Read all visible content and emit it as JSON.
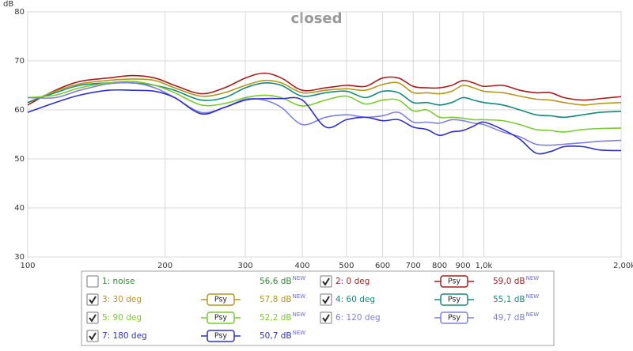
{
  "chart_data": {
    "type": "line",
    "title": "closed",
    "ylabel": "dB",
    "log_x": true,
    "grid": true,
    "xlim": [
      100,
      2000
    ],
    "ylim": [
      30,
      80
    ],
    "yticks": [
      30,
      40,
      50,
      60,
      70,
      80
    ],
    "xticks": [
      100,
      200,
      300,
      400,
      500,
      600,
      700,
      800,
      900,
      {
        "value": 1000,
        "label": "1,0k"
      },
      {
        "value": 2000,
        "label": "2,00k Hz"
      }
    ],
    "x": [
      100,
      115,
      130,
      150,
      170,
      190,
      210,
      240,
      270,
      300,
      330,
      360,
      400,
      450,
      500,
      550,
      600,
      650,
      700,
      750,
      800,
      850,
      900,
      950,
      1000,
      1100,
      1200,
      1300,
      1400,
      1500,
      1650,
      1800,
      2000
    ],
    "series": [
      {
        "name": "1: noise",
        "color": "#2e8b2e",
        "checked": false,
        "level": "56,6 dB",
        "level_note": "NEW"
      },
      {
        "name": "2: 0 deg",
        "color": "#a81e1e",
        "checked": true,
        "psy": "Psy",
        "level": "59,0 dB",
        "level_note": "NEW",
        "values": [
          61,
          64,
          65.8,
          66.5,
          67,
          66.5,
          65,
          63.3,
          64.5,
          66.5,
          67.5,
          66.5,
          64,
          64.5,
          65,
          64.8,
          66.5,
          66.5,
          64.8,
          64.5,
          64.5,
          65,
          66,
          65.5,
          64.8,
          65,
          64,
          63.5,
          63.5,
          62.5,
          62,
          62.3,
          62.7
        ]
      },
      {
        "name": "3: 30 deg",
        "color": "#b8961e",
        "checked": true,
        "psy": "Psy",
        "level": "57,8 dB",
        "level_note": "NEW",
        "values": [
          61.5,
          63.8,
          65.3,
          66,
          66.3,
          66,
          64.5,
          62.8,
          63.5,
          65,
          66,
          65.5,
          63.5,
          64,
          64.3,
          64,
          65.2,
          65.5,
          63.5,
          63.5,
          63.3,
          63.8,
          65,
          64.5,
          63.8,
          63.5,
          62.8,
          62.2,
          62,
          61.5,
          61,
          61.3,
          61.5
        ]
      },
      {
        "name": "4: 60 deg",
        "color": "#178a7a",
        "checked": true,
        "psy": "Psy",
        "level": "55,1 dB",
        "level_note": "NEW",
        "values": [
          61.5,
          63.5,
          65,
          65.5,
          65.5,
          65,
          64,
          62,
          62.5,
          64.5,
          65.5,
          65,
          62.8,
          63.5,
          63.8,
          62.5,
          63.8,
          63.5,
          61.5,
          61.5,
          61,
          61.5,
          62.5,
          62,
          61.5,
          61,
          60,
          59,
          58.8,
          58.5,
          59,
          59.5,
          59.7
        ]
      },
      {
        "name": "5: 90 deg",
        "color": "#7acc2e",
        "checked": true,
        "psy": "Psy",
        "level": "52,2 dB",
        "level_note": "NEW",
        "values": [
          62.5,
          63,
          64.5,
          65.5,
          65.8,
          65,
          63.5,
          61,
          61.3,
          62.5,
          63,
          62.5,
          60.8,
          62,
          62.8,
          61.2,
          62,
          62,
          59.8,
          60,
          58.5,
          58.5,
          58.3,
          58,
          58,
          57.8,
          57,
          56,
          55.8,
          55.5,
          56,
          56.2,
          56.3
        ]
      },
      {
        "name": "6: 120 deg",
        "color": "#8080e0",
        "checked": true,
        "psy": "Psy",
        "level": "49,7 dB",
        "level_note": "NEW",
        "values": [
          62.5,
          62.5,
          64,
          65.3,
          65.5,
          64.5,
          62.5,
          59.5,
          60.5,
          62.2,
          62,
          60.5,
          57,
          58.5,
          59,
          58.5,
          58.8,
          59.5,
          57.5,
          57.5,
          57.3,
          58,
          57.8,
          57.3,
          57,
          55.5,
          54.5,
          53,
          52.8,
          53,
          53.3,
          53.6,
          53.8
        ]
      },
      {
        "name": "7: 180 deg",
        "color": "#2f2fcf",
        "checked": true,
        "psy": "Psy",
        "level": "50,7 dB",
        "level_note": "NEW",
        "values": [
          59.5,
          61.5,
          63,
          64,
          64,
          63.8,
          62.5,
          59.2,
          60.5,
          62,
          62.3,
          62.3,
          62,
          56.5,
          58,
          58.5,
          57.8,
          58,
          56.5,
          56,
          54.8,
          55.5,
          55.8,
          56.7,
          57.5,
          56,
          54,
          51.2,
          51.5,
          52.5,
          52.5,
          51.8,
          51.7
        ]
      }
    ]
  }
}
